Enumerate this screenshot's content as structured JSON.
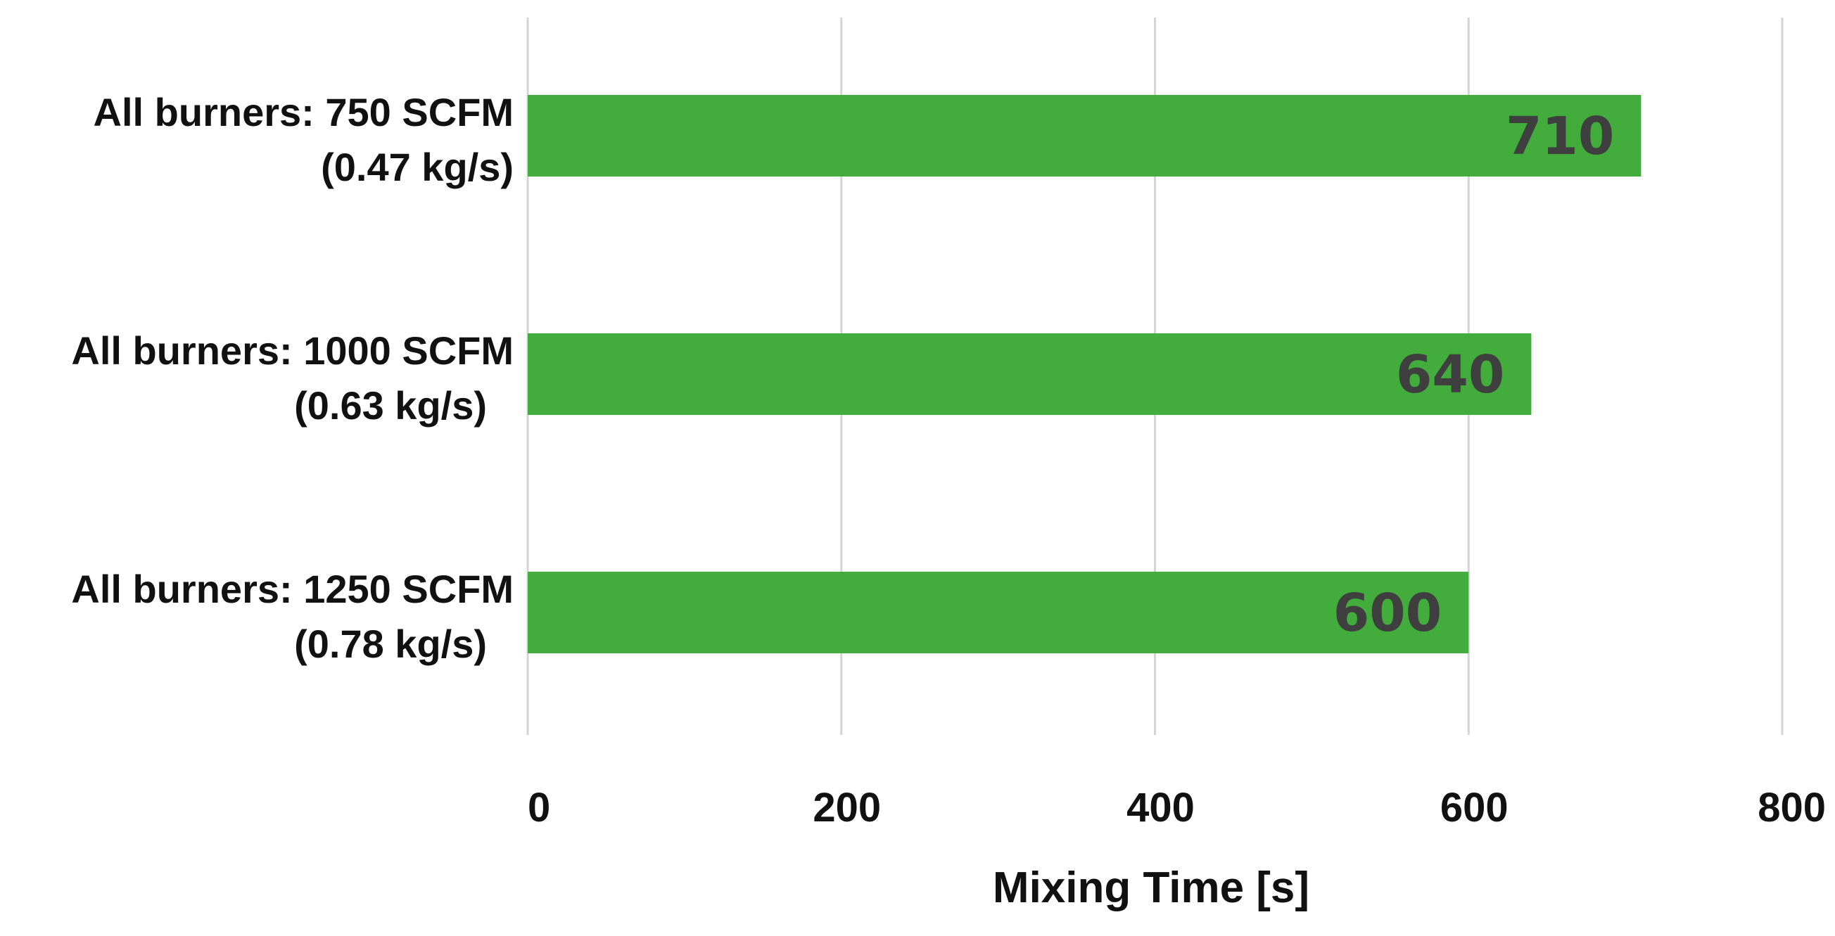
{
  "chart_data": {
    "type": "bar",
    "orientation": "horizontal",
    "title": "",
    "xlabel": "Mixing Time [s]",
    "ylabel": "",
    "xlim": [
      0,
      800
    ],
    "x_ticks": [
      "0",
      "200",
      "400",
      "600",
      "800"
    ],
    "categories": [
      {
        "line1": "All burners: 750 SCFM",
        "line2": "(0.47 kg/s)"
      },
      {
        "line1": "All burners: 1000 SCFM",
        "line2": "(0.63 kg/s)"
      },
      {
        "line1": "All burners: 1250 SCFM",
        "line2": "(0.78 kg/s)"
      }
    ],
    "values": [
      710,
      640,
      600
    ],
    "data_labels": [
      "710",
      "640",
      "600"
    ],
    "grid": "vertical",
    "legend": "none",
    "colors": {
      "bar": "#42ad3c",
      "data_label": "#3f3f3f",
      "grid": "#d4d4d4"
    }
  }
}
